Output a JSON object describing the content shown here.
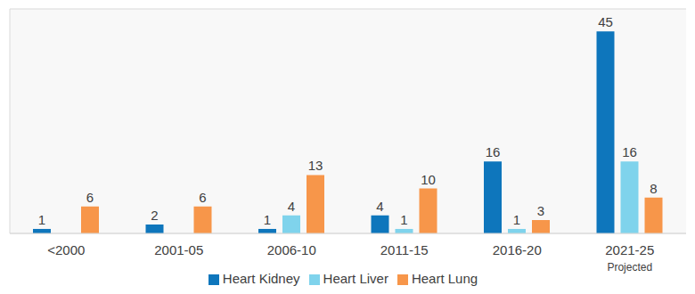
{
  "chart_data": {
    "type": "bar",
    "categories": [
      "<2000",
      "2001-05",
      "2006-10",
      "2011-15",
      "2016-20",
      "2021-25"
    ],
    "series": [
      {
        "name": "Heart Kidney",
        "color": "#0e76bc",
        "values": [
          1,
          2,
          1,
          4,
          16,
          45
        ]
      },
      {
        "name": "Heart Liver",
        "color": "#7fd3ec",
        "values": [
          0,
          0,
          4,
          1,
          1,
          16
        ]
      },
      {
        "name": "Heart Lung",
        "color": "#f7964a",
        "values": [
          6,
          6,
          13,
          10,
          3,
          8
        ]
      }
    ],
    "annotations": [
      {
        "category": "2021-25",
        "text": "Projected"
      }
    ],
    "ylim": [
      0,
      50
    ],
    "yticks": [
      0,
      5,
      10,
      15,
      20,
      25,
      30,
      35,
      40,
      45,
      50
    ],
    "grid": true,
    "legend": "bottom",
    "data_labels": true,
    "tick_labels": "x"
  }
}
